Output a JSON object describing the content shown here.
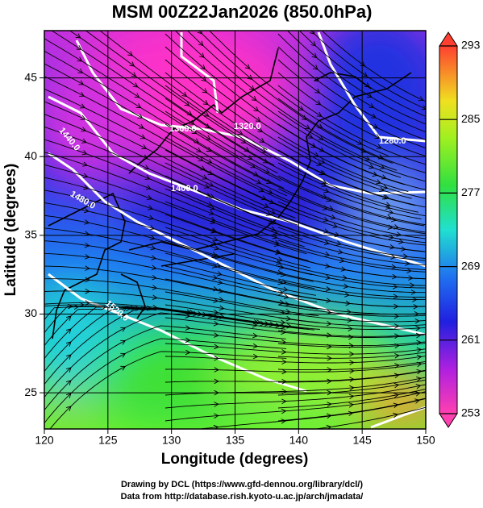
{
  "chart_data": {
    "type": "map",
    "title": "MSM 00Z22Jan2026 (850.0hPa)",
    "x_label": "Longitude (degrees)",
    "y_label": "Latitude  (degrees)",
    "xlim": [
      120,
      150
    ],
    "xticks": [
      120,
      125,
      130,
      135,
      140,
      145,
      150
    ],
    "ylim": [
      22.7,
      48
    ],
    "yticks": [
      25,
      30,
      35,
      40,
      45
    ],
    "grid": true,
    "colorbar": {
      "lim": [
        253,
        293
      ],
      "ticks": [
        253,
        261,
        269,
        277,
        285,
        293
      ]
    },
    "contour_labels": [
      "1280.0",
      "1320.0",
      "1360.0",
      "1400.0",
      "1440.0",
      "1480.0",
      "1520.0"
    ],
    "footer": [
      "Drawing by DCL (https://www.gfd-dennou.org/library/dcl/)",
      "Data from http://database.rish.kyoto-u.ac.jp/arch/jmadata/"
    ]
  }
}
